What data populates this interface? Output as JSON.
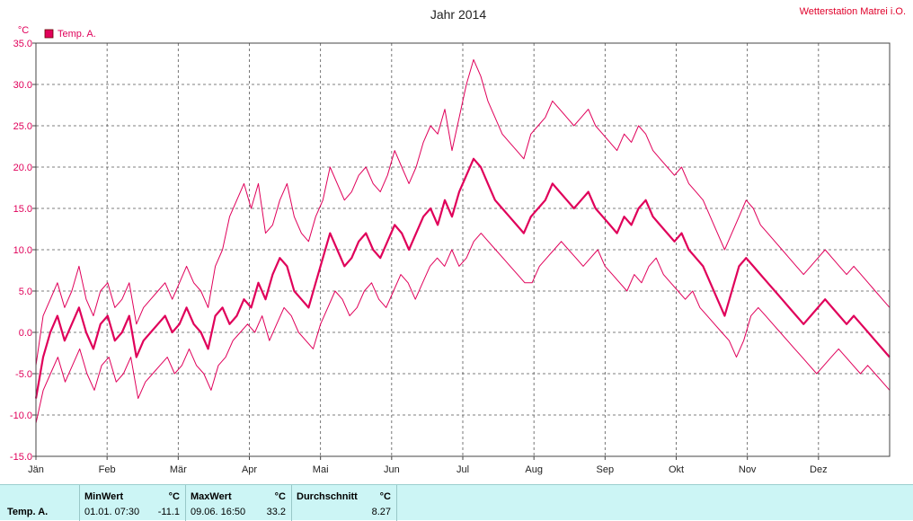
{
  "title": "Jahr 2014",
  "station": "Wetterstation Matrei i.O.",
  "unit": "°C",
  "chart_data": {
    "type": "line",
    "ylim": [
      -15,
      35
    ],
    "y_ticks": [
      "-15.0",
      "-10.0",
      "-5.0",
      "0.0",
      "5.0",
      "10.0",
      "15.0",
      "20.0",
      "25.0",
      "30.0",
      "35.0"
    ],
    "x_ticks": [
      "Jän",
      "Feb",
      "Mär",
      "Apr",
      "Mai",
      "Jun",
      "Jul",
      "Aug",
      "Sep",
      "Okt",
      "Nov",
      "Dez"
    ],
    "grid": true,
    "legend": "top-left",
    "series": [
      {
        "name": "Temp. A.",
        "role": "mean",
        "color": "#e0005a",
        "values": [
          -8,
          -3,
          0,
          2,
          -1,
          1,
          3,
          0,
          -2,
          1,
          2,
          -1,
          0,
          2,
          -3,
          -1,
          0,
          1,
          2,
          0,
          1,
          3,
          1,
          0,
          -2,
          2,
          3,
          1,
          2,
          4,
          3,
          6,
          4,
          7,
          9,
          8,
          5,
          4,
          3,
          6,
          9,
          12,
          10,
          8,
          9,
          11,
          12,
          10,
          9,
          11,
          13,
          12,
          10,
          12,
          14,
          15,
          13,
          16,
          14,
          17,
          19,
          21,
          20,
          18,
          16,
          15,
          14,
          13,
          12,
          14,
          15,
          16,
          18,
          17,
          16,
          15,
          16,
          17,
          15,
          14,
          13,
          12,
          14,
          13,
          15,
          16,
          14,
          13,
          12,
          11,
          12,
          10,
          9,
          8,
          6,
          4,
          2,
          5,
          8,
          9,
          8,
          7,
          6,
          5,
          4,
          3,
          2,
          1,
          2,
          3,
          4,
          3,
          2,
          1,
          2,
          1,
          0,
          -1,
          -2,
          -3
        ]
      },
      {
        "name": "",
        "role": "max",
        "color": "#e0005a",
        "values": [
          -4,
          2,
          4,
          6,
          3,
          5,
          8,
          4,
          2,
          5,
          6,
          3,
          4,
          6,
          1,
          3,
          4,
          5,
          6,
          4,
          6,
          8,
          6,
          5,
          3,
          8,
          10,
          14,
          16,
          18,
          15,
          18,
          12,
          13,
          16,
          18,
          14,
          12,
          11,
          14,
          16,
          20,
          18,
          16,
          17,
          19,
          20,
          18,
          17,
          19,
          22,
          20,
          18,
          20,
          23,
          25,
          24,
          27,
          22,
          26,
          30,
          33,
          31,
          28,
          26,
          24,
          23,
          22,
          21,
          24,
          25,
          26,
          28,
          27,
          26,
          25,
          26,
          27,
          25,
          24,
          23,
          22,
          24,
          23,
          25,
          24,
          22,
          21,
          20,
          19,
          20,
          18,
          17,
          16,
          14,
          12,
          10,
          12,
          14,
          16,
          15,
          13,
          12,
          11,
          10,
          9,
          8,
          7,
          8,
          9,
          10,
          9,
          8,
          7,
          8,
          7,
          6,
          5,
          4,
          3
        ]
      },
      {
        "name": "",
        "role": "min",
        "color": "#e0005a",
        "values": [
          -11,
          -7,
          -5,
          -3,
          -6,
          -4,
          -2,
          -5,
          -7,
          -4,
          -3,
          -6,
          -5,
          -3,
          -8,
          -6,
          -5,
          -4,
          -3,
          -5,
          -4,
          -2,
          -4,
          -5,
          -7,
          -4,
          -3,
          -1,
          0,
          1,
          0,
          2,
          -1,
          1,
          3,
          2,
          0,
          -1,
          -2,
          1,
          3,
          5,
          4,
          2,
          3,
          5,
          6,
          4,
          3,
          5,
          7,
          6,
          4,
          6,
          8,
          9,
          8,
          10,
          8,
          9,
          11,
          12,
          11,
          10,
          9,
          8,
          7,
          6,
          6,
          8,
          9,
          10,
          11,
          10,
          9,
          8,
          9,
          10,
          8,
          7,
          6,
          5,
          7,
          6,
          8,
          9,
          7,
          6,
          5,
          4,
          5,
          3,
          2,
          1,
          0,
          -1,
          -3,
          -1,
          2,
          3,
          2,
          1,
          0,
          -1,
          -2,
          -3,
          -4,
          -5,
          -4,
          -3,
          -2,
          -3,
          -4,
          -5,
          -4,
          -5,
          -6,
          -7
        ]
      }
    ]
  },
  "stats": {
    "series_label": "Temp. A.",
    "min": {
      "label": "MinWert",
      "unit": "°C",
      "when": "01.01.  07:30",
      "value": "-11.1"
    },
    "max": {
      "label": "MaxWert",
      "unit": "°C",
      "when": "09.06.  16:50",
      "value": "33.2"
    },
    "avg": {
      "label": "Durchschnitt",
      "unit": "°C",
      "value": "8.27"
    }
  }
}
